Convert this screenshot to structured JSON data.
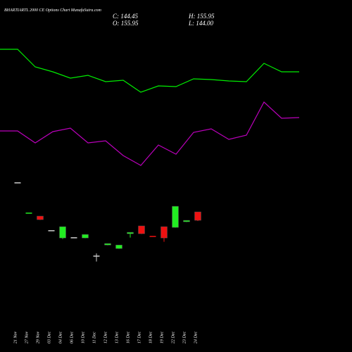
{
  "chart_data": [
    {
      "type": "candlestick",
      "title": "BHARTIARTL 2000 CE Options Chart MunafaSutra.com",
      "header": [
        "C: 144.45",
        "H: 155.95",
        "O: 155.95",
        "L: 144.00"
      ],
      "categories": [
        "21 Nov",
        "27 Nov",
        "29 Nov",
        "03 Dec",
        "04 Dec",
        "06 Dec",
        "10 Dec",
        "11 Dec",
        "12 Dec",
        "13 Dec",
        "16 Dec",
        "17 Dec",
        "18 Dec",
        "19 Dec",
        "22 Dec",
        "23 Dec",
        "24 Dec"
      ],
      "open": [
        196.3,
        155.0,
        150.2,
        131.0,
        120.4,
        121.4,
        120.4,
        96.4,
        110.8,
        106.0,
        126.2,
        136.8,
        123.3,
        135.8,
        134.8,
        142.5,
        155.95
      ],
      "high": [
        196.3,
        155.0,
        150.2,
        131.0,
        135.8,
        121.4,
        125.2,
        99.3,
        112.8,
        110.8,
        128.1,
        136.8,
        123.3,
        135.8,
        163.6,
        144.4,
        155.95
      ],
      "low": [
        196.3,
        155.0,
        145.4,
        131.0,
        119.5,
        121.4,
        120.4,
        88.8,
        110.8,
        106.0,
        121.4,
        126.2,
        123.3,
        115.6,
        134.8,
        142.5,
        144.0
      ],
      "close": [
        196.3,
        155.0,
        145.4,
        131.0,
        135.8,
        121.4,
        125.2,
        96.4,
        112.8,
        110.8,
        128.1,
        126.2,
        123.3,
        120.4,
        163.6,
        144.4,
        144.45
      ],
      "colors": [
        "#cccccc",
        "#22ee22",
        "#ee1111",
        "#cccccc",
        "#22ee22",
        "#cccccc",
        "#22ee22",
        "#cccccc",
        "#22ee22",
        "#22ee22",
        "#22ee22",
        "#ee1111",
        "#ee1111",
        "#ee1111",
        "#22ee22",
        "#22ee22",
        "#ee1111"
      ],
      "ylim": [
        -35.09,
        444.91
      ]
    },
    {
      "type": "line",
      "series": [
        {
          "color": "#00ee00",
          "values": [
            430,
            430,
            405,
            398,
            389,
            393,
            384,
            386,
            369,
            378,
            377,
            388,
            387,
            385,
            384,
            410,
            398,
            398
          ]
        },
        {
          "color": "#bb00bb",
          "values": [
            314,
            314,
            297,
            313,
            318,
            297,
            300,
            279,
            265,
            294,
            281,
            312,
            317,
            302,
            308,
            355,
            332,
            333
          ]
        }
      ],
      "ylim": [
        0,
        500
      ]
    }
  ]
}
